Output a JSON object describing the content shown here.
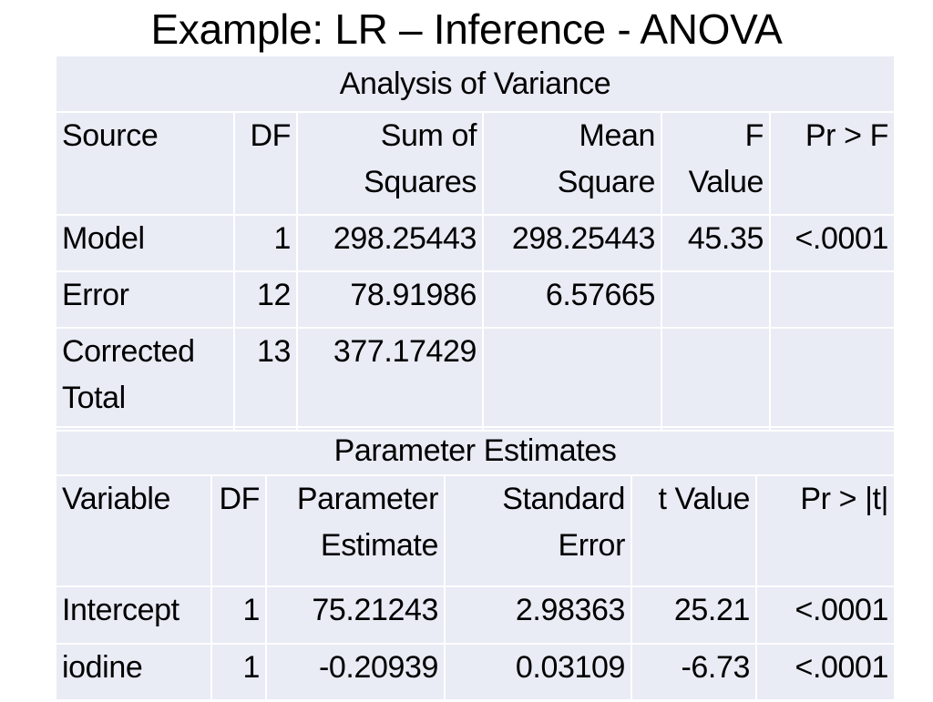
{
  "slide": {
    "title": "Example: LR – Inference - ANOVA"
  },
  "anova": {
    "heading": "Analysis of Variance",
    "columns": [
      "Source",
      "DF",
      "Sum of Squares",
      "Mean Square",
      "F Value",
      "Pr > F"
    ],
    "rows": [
      [
        "Model",
        "1",
        "298.25443",
        "298.25443",
        "45.35",
        "<.0001"
      ],
      [
        "Error",
        "12",
        "78.91986",
        "6.57665",
        "",
        ""
      ],
      [
        "Corrected Total",
        "13",
        "377.17429",
        "",
        "",
        ""
      ]
    ]
  },
  "params": {
    "heading": "Parameter Estimates",
    "columns": [
      "Variable",
      "DF",
      "Parameter Estimate",
      "Standard Error",
      "t Value",
      "Pr > |t|"
    ],
    "rows": [
      [
        "Intercept",
        "1",
        "75.21243",
        "2.98363",
        "25.21",
        "<.0001"
      ],
      [
        "iodine",
        "1",
        "-0.20939",
        "0.03109",
        "-6.73",
        "<.0001"
      ]
    ]
  },
  "colors": {
    "panel_bg": "#e9ebf5",
    "grid_lines": "#ffffff",
    "text": "#000000"
  }
}
